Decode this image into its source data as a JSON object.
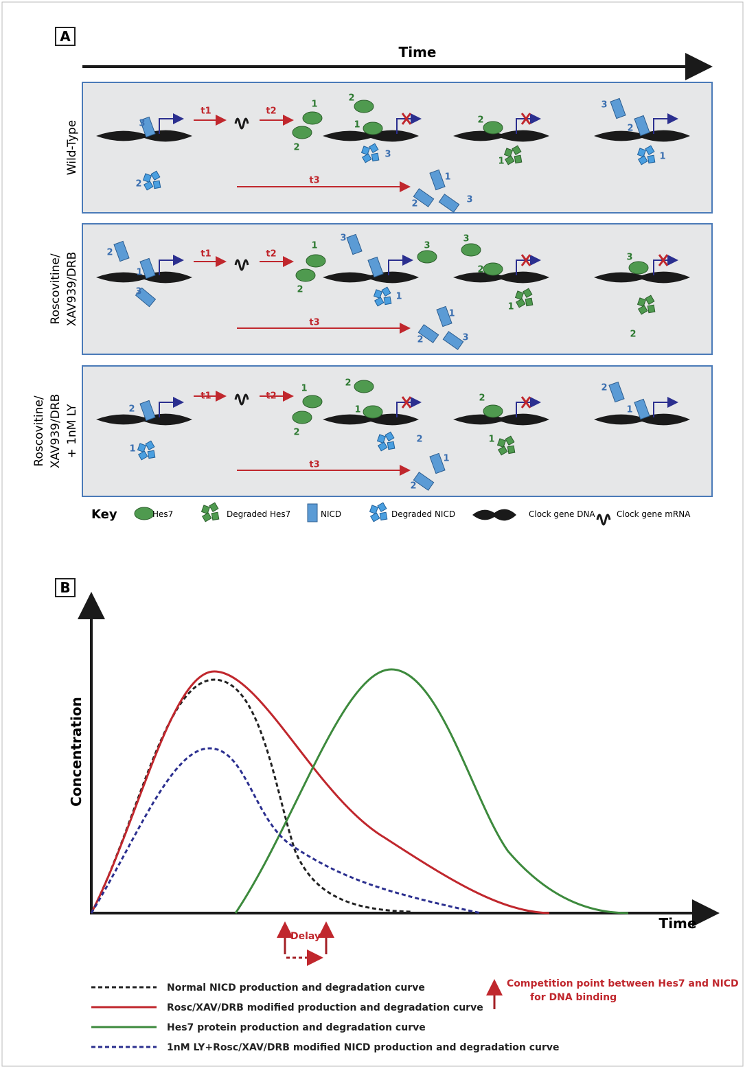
{
  "panel_a": {
    "label": "A",
    "time_label": "Time",
    "rows": [
      {
        "name_lines": [
          "Wild-Type"
        ],
        "labels": [
          "3",
          "t1",
          "t2",
          "1",
          "2",
          "2",
          "1",
          "3",
          "2",
          "1",
          "3",
          "2",
          "1",
          "2",
          "t3",
          "1",
          "2",
          "3"
        ]
      },
      {
        "name_lines": [
          "Roscovitine/",
          "XAV939/DRB"
        ],
        "labels": [
          "2",
          "1",
          "3",
          "t1",
          "t2",
          "1",
          "2",
          "3",
          "3",
          "1",
          "3",
          "2",
          "1",
          "3",
          "2",
          "t3",
          "1",
          "2",
          "3"
        ]
      },
      {
        "name_lines": [
          "Roscovitine/",
          "XAV939/DRB",
          "+ 1nM LY"
        ],
        "labels": [
          "2",
          "1",
          "t1",
          "t2",
          "1",
          "2",
          "2",
          "1",
          "2",
          "2",
          "1",
          "2",
          "1",
          "t3",
          "1",
          "2"
        ]
      }
    ],
    "key": {
      "title": "Key",
      "items": [
        "Hes7",
        "Degraded Hes7",
        "NICD",
        "Degraded NICD",
        "Clock gene DNA",
        "Clock gene mRNA"
      ]
    }
  },
  "panel_b": {
    "label": "B",
    "y_label": "Concentration",
    "x_label": "Time",
    "delay_label": "Delay",
    "legend": [
      "Normal NICD production and degradation curve",
      "Rosc/XAV/DRB modified production and degradation curve",
      "Hes7 protein production and degradation curve",
      "1nM LY+Rosc/XAV/DRB modified NICD production and degradation curve"
    ],
    "competition_note": [
      "Competition point between Hes7 and NICD",
      "for DNA binding"
    ]
  }
}
